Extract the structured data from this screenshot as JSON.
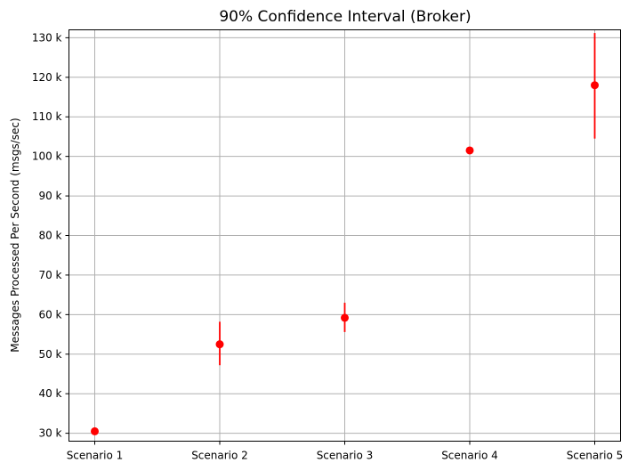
{
  "chart_data": {
    "type": "scatter",
    "title": "90% Confidence Interval (Broker)",
    "xlabel": "",
    "ylabel": "Messages Processed Per Second (msgs/sec)",
    "categories": [
      "Scenario 1",
      "Scenario 2",
      "Scenario 3",
      "Scenario 4",
      "Scenario 5"
    ],
    "values": [
      30500,
      52500,
      59200,
      101500,
      118000
    ],
    "ci_low": [
      30500,
      47200,
      55600,
      101500,
      104500
    ],
    "ci_high": [
      30500,
      58200,
      63000,
      101500,
      131200
    ],
    "ylim": [
      28000,
      132000
    ],
    "yticks": [
      30000,
      40000,
      50000,
      60000,
      70000,
      80000,
      90000,
      100000,
      110000,
      120000,
      130000
    ],
    "ytick_labels": [
      "30 k",
      "40 k",
      "50 k",
      "60 k",
      "70 k",
      "80 k",
      "90 k",
      "100 k",
      "110 k",
      "120 k",
      "130 k"
    ],
    "grid": true,
    "color": "#ff0000"
  }
}
